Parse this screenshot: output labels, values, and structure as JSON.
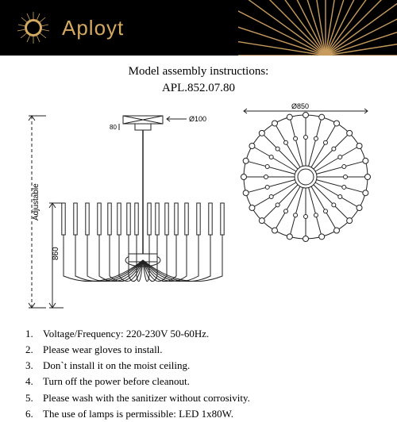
{
  "header": {
    "brand": "Aployt",
    "bg_color": "#000000",
    "brand_color": "#d4a960",
    "ray_color": "#c89b5e"
  },
  "title": {
    "line1": "Model assembly instructions:",
    "line2": "APL.852.07.80",
    "fontsize": 15
  },
  "diagram": {
    "height_label": "860",
    "adjustable_label": "Adjustable",
    "top_width_label": "Ø100",
    "top_gap_label": "80",
    "circle_diameter_label": "Ø850",
    "arm_count": 24,
    "stroke_color": "#222222",
    "line_width": 1
  },
  "instructions": {
    "fontsize": 13,
    "items": [
      "Voltage/Frequency: 220-230V 50-60Hz.",
      "Please wear gloves to install.",
      "Don`t install it on the moist ceiling.",
      "Turn off the power before cleanout.",
      "Please wash with the sanitizer without corrosivity.",
      "The use of lamps is permissible: LED 1x80W."
    ]
  }
}
